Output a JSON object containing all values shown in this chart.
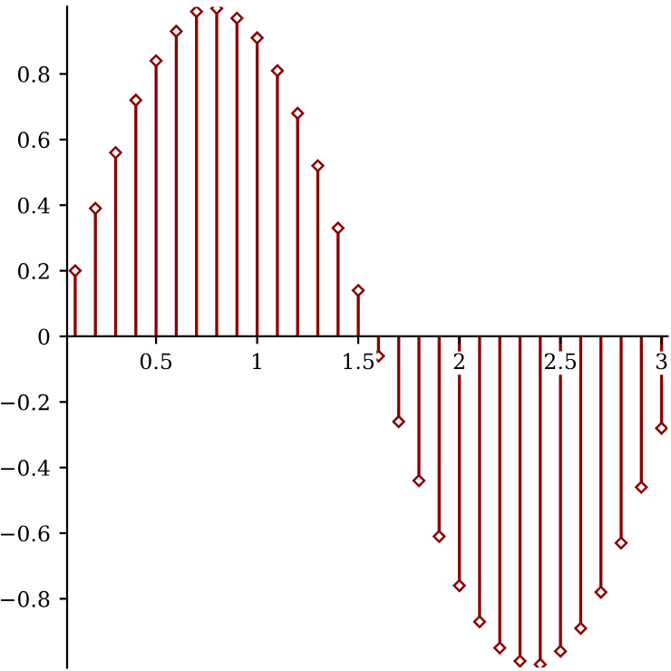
{
  "chart_data": {
    "type": "lollipop",
    "x": [
      0.1,
      0.2,
      0.3,
      0.4,
      0.5,
      0.6,
      0.7,
      0.8,
      0.9,
      1.0,
      1.1,
      1.2,
      1.3,
      1.4,
      1.5,
      1.6,
      1.7,
      1.8,
      1.9,
      2.0,
      2.1,
      2.2,
      2.3,
      2.4,
      2.5,
      2.6,
      2.7,
      2.8,
      2.9,
      3.0
    ],
    "values": [
      0.2,
      0.39,
      0.56,
      0.72,
      0.84,
      0.93,
      0.99,
      1.0,
      0.97,
      0.91,
      0.81,
      0.68,
      0.52,
      0.33,
      0.14,
      -0.06,
      -0.26,
      -0.44,
      -0.61,
      -0.76,
      -0.87,
      -0.95,
      -0.99,
      -1.0,
      -0.96,
      -0.89,
      -0.78,
      -0.63,
      -0.46,
      -0.28
    ],
    "color": "#8b0000",
    "marker": "diamond",
    "xlim": [
      0.06,
      3.03
    ],
    "ylim": [
      -1.01,
      1.005
    ],
    "xticks": [
      0.5,
      1,
      1.5,
      2,
      2.5,
      3
    ],
    "yticks": [
      {
        "value": -0.8,
        "label": "−0.8"
      },
      {
        "value": -0.6,
        "label": "−0.6"
      },
      {
        "value": -0.4,
        "label": "−0.4"
      },
      {
        "value": -0.2,
        "label": "−0.2"
      },
      0,
      0.2,
      0.4,
      0.6,
      0.8
    ],
    "grid": false,
    "legend": false
  }
}
